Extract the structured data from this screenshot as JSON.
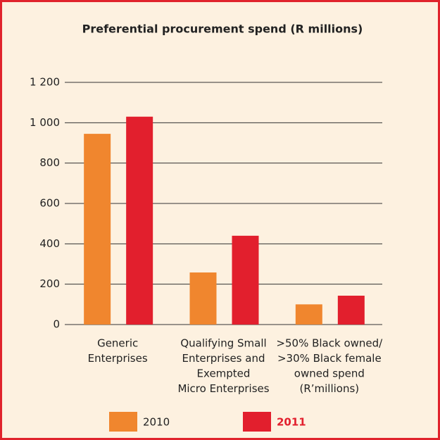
{
  "chart_data": {
    "type": "bar",
    "title": "Preferential procurement spend (R millions)",
    "categories": [
      [
        "Generic",
        "Enterprises"
      ],
      [
        "Qualifying Small",
        "Enterprises and",
        "Exempted",
        "Micro Enterprises"
      ],
      [
        ">50% Black owned/",
        ">30% Black female",
        "owned spend",
        "(R’millions)"
      ]
    ],
    "series": [
      {
        "name": "2010",
        "color": "#f0862e",
        "values": [
          945,
          258,
          100
        ]
      },
      {
        "name": "2011",
        "color": "#e21f2d",
        "values": [
          1030,
          440,
          143
        ]
      }
    ],
    "ylim": [
      0,
      1200
    ],
    "yticks": [
      0,
      200,
      400,
      600,
      800,
      {
        "value": 1000,
        "label": "1 000"
      },
      {
        "value": 1200,
        "label": "1 200"
      }
    ],
    "grid": true,
    "legend": "bottom"
  }
}
